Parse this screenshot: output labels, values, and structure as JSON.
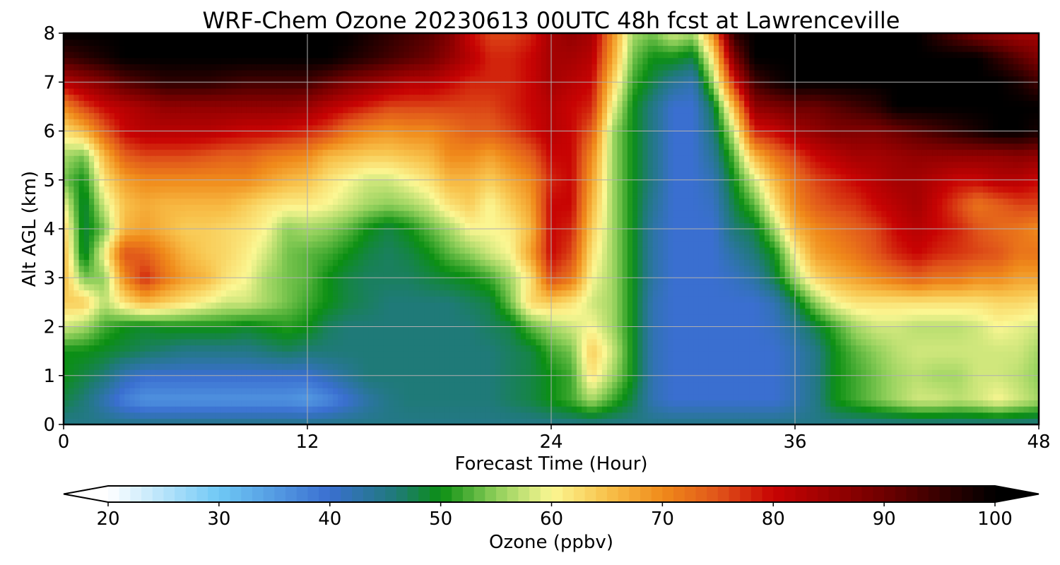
{
  "chart_data": {
    "type": "heatmap",
    "title": "WRF-Chem Ozone  20230613 00UTC 48h fcst at Lawrenceville",
    "xlabel": "Forecast Time (Hour)",
    "ylabel": "Alt AGL (km)",
    "xlim": [
      0,
      48
    ],
    "ylim": [
      0,
      8
    ],
    "xticks": [
      0,
      12,
      24,
      36,
      48
    ],
    "yticks": [
      0,
      1,
      2,
      3,
      4,
      5,
      6,
      7,
      8
    ],
    "grid": true,
    "hours": [
      0,
      1,
      2,
      3,
      4,
      5,
      6,
      7,
      8,
      9,
      10,
      11,
      12,
      13,
      14,
      15,
      16,
      17,
      18,
      19,
      20,
      21,
      22,
      23,
      24,
      25,
      26,
      27,
      28,
      29,
      30,
      31,
      32,
      33,
      34,
      35,
      36,
      37,
      38,
      39,
      40,
      41,
      42,
      43,
      44,
      45,
      46,
      47,
      48
    ],
    "altitudes_km": [
      0,
      0.5,
      1,
      1.5,
      2,
      2.5,
      3,
      3.5,
      4,
      4.5,
      5,
      5.5,
      6,
      6.5,
      7,
      7.5,
      8
    ],
    "ozone_ppbv": [
      [
        45,
        45,
        45,
        45,
        45,
        45,
        45,
        45,
        45,
        45,
        45,
        45,
        45,
        45,
        45,
        45,
        45,
        45,
        45,
        45,
        45,
        45,
        45,
        45,
        45,
        45,
        45,
        45,
        45,
        45,
        45,
        45,
        45,
        45,
        45,
        45,
        45,
        45,
        45,
        45,
        45,
        45,
        45,
        45,
        45,
        45,
        45,
        45,
        45
      ],
      [
        48,
        46,
        42,
        38,
        36,
        36,
        36,
        36,
        36,
        36,
        36,
        36,
        35,
        37,
        40,
        43,
        45,
        46,
        46,
        46,
        46,
        46,
        47,
        48,
        50,
        52,
        56,
        52,
        48,
        42,
        40,
        40,
        40,
        40,
        40,
        40,
        42,
        45,
        50,
        52,
        54,
        56,
        58,
        58,
        57,
        58,
        60,
        58,
        56
      ],
      [
        50,
        48,
        46,
        42,
        40,
        40,
        40,
        40,
        40,
        40,
        40,
        40,
        40,
        42,
        44,
        46,
        46,
        46,
        46,
        46,
        46,
        46,
        47,
        48,
        50,
        52,
        62,
        56,
        50,
        42,
        40,
        40,
        40,
        40,
        40,
        40,
        42,
        45,
        50,
        52,
        54,
        56,
        57,
        56,
        56,
        58,
        58,
        57,
        55
      ],
      [
        50,
        50,
        49,
        48,
        47,
        46,
        45,
        45,
        45,
        45,
        46,
        47,
        46,
        46,
        46,
        46,
        46,
        46,
        46,
        46,
        46,
        46,
        47,
        48,
        52,
        54,
        64,
        58,
        50,
        42,
        40,
        40,
        40,
        40,
        40,
        40,
        42,
        45,
        50,
        53,
        55,
        57,
        58,
        58,
        58,
        58,
        58,
        58,
        56
      ],
      [
        58,
        56,
        52,
        50,
        49,
        50,
        50,
        50,
        50,
        49,
        50,
        51,
        50,
        47,
        46,
        46,
        46,
        46,
        46,
        46,
        46,
        47,
        48,
        53,
        56,
        58,
        60,
        56,
        50,
        42,
        40,
        40,
        40,
        40,
        40,
        41,
        44,
        48,
        52,
        56,
        58,
        58,
        57,
        57,
        57,
        58,
        60,
        59,
        58
      ],
      [
        64,
        64,
        57,
        62,
        66,
        64,
        62,
        60,
        58,
        58,
        56,
        54,
        52,
        50,
        48,
        47,
        46,
        46,
        46,
        46,
        47,
        48,
        54,
        63,
        64,
        62,
        58,
        56,
        50,
        42,
        40,
        40,
        40,
        40,
        40,
        42,
        48,
        55,
        60,
        62,
        62,
        62,
        62,
        62,
        62,
        62,
        63,
        63,
        62
      ],
      [
        66,
        54,
        55,
        70,
        78,
        72,
        68,
        66,
        62,
        60,
        56,
        54,
        53,
        50,
        48,
        47,
        47,
        47,
        48,
        49,
        50,
        52,
        56,
        62,
        76,
        72,
        60,
        56,
        50,
        43,
        40,
        40,
        40,
        41,
        43,
        48,
        56,
        63,
        66,
        68,
        70,
        72,
        74,
        72,
        72,
        70,
        70,
        68,
        68
      ],
      [
        66,
        48,
        60,
        75,
        74,
        70,
        66,
        64,
        63,
        61,
        58,
        54,
        53,
        52,
        50,
        48,
        47,
        48,
        50,
        53,
        55,
        58,
        60,
        68,
        80,
        76,
        62,
        56,
        50,
        43,
        40,
        40,
        40,
        43,
        46,
        50,
        60,
        68,
        70,
        72,
        75,
        78,
        80,
        78,
        77,
        76,
        75,
        72,
        72
      ],
      [
        64,
        48,
        54,
        66,
        68,
        66,
        64,
        64,
        63,
        62,
        60,
        55,
        56,
        55,
        53,
        50,
        48,
        50,
        53,
        56,
        60,
        60,
        61,
        66,
        80,
        78,
        64,
        56,
        50,
        43,
        40,
        40,
        40,
        46,
        48,
        56,
        66,
        70,
        72,
        74,
        76,
        80,
        82,
        80,
        78,
        75,
        73,
        72,
        70
      ],
      [
        60,
        48,
        58,
        65,
        67,
        66,
        66,
        66,
        66,
        64,
        62,
        61,
        61,
        60,
        58,
        56,
        55,
        56,
        58,
        62,
        64,
        60,
        64,
        68,
        80,
        80,
        66,
        56,
        50,
        44,
        40,
        40,
        41,
        48,
        53,
        62,
        70,
        74,
        76,
        77,
        80,
        82,
        84,
        80,
        76,
        72,
        74,
        76,
        76
      ],
      [
        54,
        50,
        62,
        68,
        70,
        70,
        70,
        70,
        70,
        70,
        68,
        66,
        65,
        62,
        60,
        58,
        58,
        60,
        62,
        66,
        66,
        64,
        67,
        70,
        78,
        80,
        68,
        56,
        50,
        45,
        40,
        40,
        42,
        50,
        58,
        66,
        72,
        76,
        78,
        80,
        82,
        84,
        84,
        82,
        80,
        80,
        82,
        82,
        80
      ],
      [
        56,
        54,
        66,
        74,
        76,
        76,
        76,
        75,
        74,
        74,
        72,
        71,
        70,
        66,
        65,
        64,
        64,
        65,
        66,
        70,
        70,
        68,
        71,
        74,
        80,
        80,
        70,
        56,
        50,
        45,
        40,
        40,
        44,
        53,
        66,
        72,
        76,
        80,
        82,
        84,
        84,
        85,
        86,
        86,
        86,
        86,
        86,
        87,
        86
      ],
      [
        62,
        66,
        74,
        80,
        82,
        82,
        82,
        82,
        81,
        80,
        80,
        79,
        78,
        76,
        72,
        70,
        69,
        70,
        70,
        72,
        74,
        74,
        76,
        79,
        82,
        80,
        74,
        56,
        50,
        45,
        40,
        40,
        46,
        58,
        78,
        80,
        84,
        86,
        88,
        88,
        88,
        90,
        92,
        94,
        96,
        98,
        100,
        100,
        98
      ],
      [
        70,
        76,
        80,
        82,
        84,
        86,
        86,
        86,
        86,
        86,
        86,
        86,
        85,
        82,
        80,
        78,
        76,
        76,
        76,
        76,
        76,
        76,
        78,
        80,
        82,
        80,
        78,
        60,
        50,
        45,
        40,
        40,
        48,
        66,
        86,
        88,
        90,
        90,
        92,
        94,
        96,
        100,
        100,
        100,
        100,
        100,
        100,
        100,
        100
      ],
      [
        82,
        85,
        88,
        92,
        94,
        96,
        96,
        96,
        95,
        94,
        94,
        94,
        94,
        91,
        88,
        86,
        84,
        82,
        82,
        80,
        78,
        78,
        78,
        80,
        84,
        82,
        80,
        64,
        52,
        48,
        44,
        42,
        56,
        78,
        94,
        98,
        100,
        100,
        100,
        100,
        100,
        100,
        100,
        100,
        100,
        100,
        100,
        98,
        94
      ],
      [
        94,
        96,
        98,
        100,
        100,
        100,
        100,
        100,
        100,
        100,
        100,
        100,
        100,
        100,
        98,
        96,
        94,
        92,
        90,
        86,
        82,
        78,
        78,
        80,
        84,
        84,
        82,
        68,
        54,
        50,
        50,
        48,
        62,
        88,
        100,
        100,
        100,
        100,
        100,
        100,
        100,
        100,
        100,
        100,
        100,
        100,
        96,
        92,
        88
      ],
      [
        100,
        100,
        100,
        100,
        100,
        100,
        100,
        100,
        100,
        100,
        100,
        100,
        100,
        100,
        100,
        98,
        96,
        94,
        92,
        88,
        80,
        76,
        76,
        78,
        84,
        86,
        84,
        70,
        56,
        54,
        58,
        56,
        70,
        96,
        100,
        100,
        100,
        100,
        100,
        100,
        100,
        100,
        100,
        96,
        92,
        88,
        86,
        84,
        84
      ]
    ],
    "colorbar": {
      "label": "Ozone  (ppbv)",
      "min": 20,
      "max": 100,
      "ticks": [
        20,
        30,
        40,
        50,
        60,
        70,
        80,
        90,
        100
      ],
      "extend": "both",
      "palette_stops": [
        {
          "value": 20,
          "color": "#ffffff"
        },
        {
          "value": 30,
          "color": "#6fc8f5"
        },
        {
          "value": 40,
          "color": "#3a6fd0"
        },
        {
          "value": 46,
          "color": "#1f7a78"
        },
        {
          "value": 50,
          "color": "#0b8f13"
        },
        {
          "value": 55,
          "color": "#8fcf5a"
        },
        {
          "value": 60,
          "color": "#fbf793"
        },
        {
          "value": 65,
          "color": "#f8c24b"
        },
        {
          "value": 70,
          "color": "#f08a1a"
        },
        {
          "value": 75,
          "color": "#e0551a"
        },
        {
          "value": 80,
          "color": "#c80303"
        },
        {
          "value": 90,
          "color": "#6e0000"
        },
        {
          "value": 100,
          "color": "#000000"
        }
      ]
    }
  }
}
